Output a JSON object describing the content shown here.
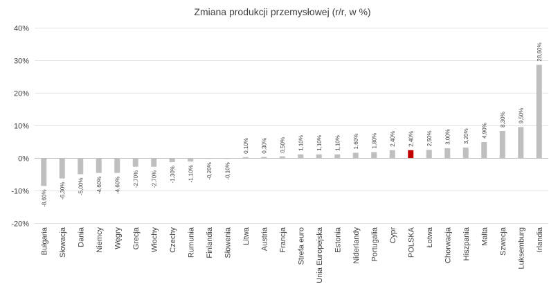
{
  "chart_data": {
    "type": "bar",
    "title": "Zmiana produkcji przemysłowej (r/r, w %)",
    "xlabel": "",
    "ylabel": "",
    "ylim": [
      -20,
      40
    ],
    "yticks": [
      -20,
      -10,
      0,
      10,
      20,
      30,
      40
    ],
    "ytick_labels": [
      "-20%",
      "-10%",
      "0%",
      "10%",
      "20%",
      "30%",
      "40%"
    ],
    "grid": true,
    "categories": [
      "Bułgaria",
      "Słowacja",
      "Dania",
      "Niemcy",
      "Węgry",
      "Grecja",
      "Włochy",
      "Czechy",
      "Rumunia",
      "Finlandia",
      "Słowenia",
      "Litwa",
      "Austria",
      "Francja",
      "Strefa euro",
      "Unia Europejska",
      "Estonia",
      "Niderlandy",
      "Portugalia",
      "Cypr",
      "POLSKA",
      "Łotwa",
      "Chorwacja",
      "Hiszpania",
      "Malta",
      "Szwecja",
      "Luksemburg",
      "Irlandia"
    ],
    "values": [
      -8.6,
      -6.3,
      -5.0,
      -4.6,
      -4.6,
      -2.7,
      -2.7,
      -1.3,
      -1.1,
      -0.2,
      -0.1,
      0.1,
      0.3,
      0.5,
      1.1,
      1.1,
      1.1,
      1.6,
      1.8,
      2.4,
      2.4,
      2.5,
      3.0,
      3.2,
      4.9,
      8.3,
      9.5,
      28.6
    ],
    "data_labels": [
      "-8,60%",
      "-6,30%",
      "-5,00%",
      "-4,60%",
      "-4,60%",
      "-2,70%",
      "-2,70%",
      "-1,30%",
      "-1,10%",
      "-0,20%",
      "-0,10%",
      "0,10%",
      "0,30%",
      "0,50%",
      "1,10%",
      "1,10%",
      "1,10%",
      "1,60%",
      "1,80%",
      "2,40%",
      "2,40%",
      "2,50%",
      "3,00%",
      "3,20%",
      "4,90%",
      "8,30%",
      "9,50%",
      "28,60%"
    ],
    "colors": {
      "default": "#bfbfbf",
      "highlight": "#c00000"
    },
    "highlight_category": "POLSKA"
  }
}
